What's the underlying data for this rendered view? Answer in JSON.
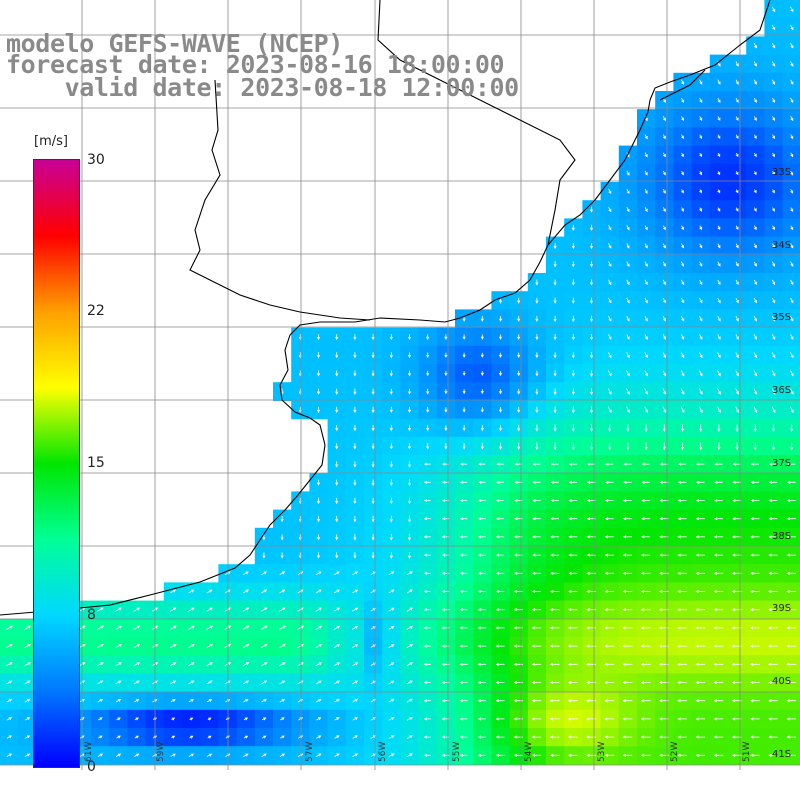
{
  "title": {
    "line1": "modelo GEFS-WAVE (NCEP)",
    "line2": "forecast date: 2023-08-16 18:00:00",
    "line3": "    valid date: 2023-08-18 12:00:00"
  },
  "colorbar": {
    "unit": "[m/s]",
    "ticks": [
      {
        "label": "30",
        "value": 30
      },
      {
        "label": "22",
        "value": 22
      },
      {
        "label": "15",
        "value": 15
      },
      {
        "label": "8",
        "value": 8
      },
      {
        "label": "0",
        "value": 0
      }
    ],
    "colors": [
      "#0000ff",
      "#0078ff",
      "#00d8ff",
      "#00ff96",
      "#00e600",
      "#ffff00",
      "#ffa000",
      "#ff0000",
      "#c80096"
    ]
  },
  "lat_labels": [
    "33S",
    "34S",
    "35S",
    "36S",
    "37S",
    "38S",
    "39S",
    "40S",
    "41S"
  ],
  "lon_labels": [
    "61W",
    "59W",
    "57W",
    "56W",
    "55W",
    "54W",
    "53W",
    "52W",
    "51W"
  ]
}
